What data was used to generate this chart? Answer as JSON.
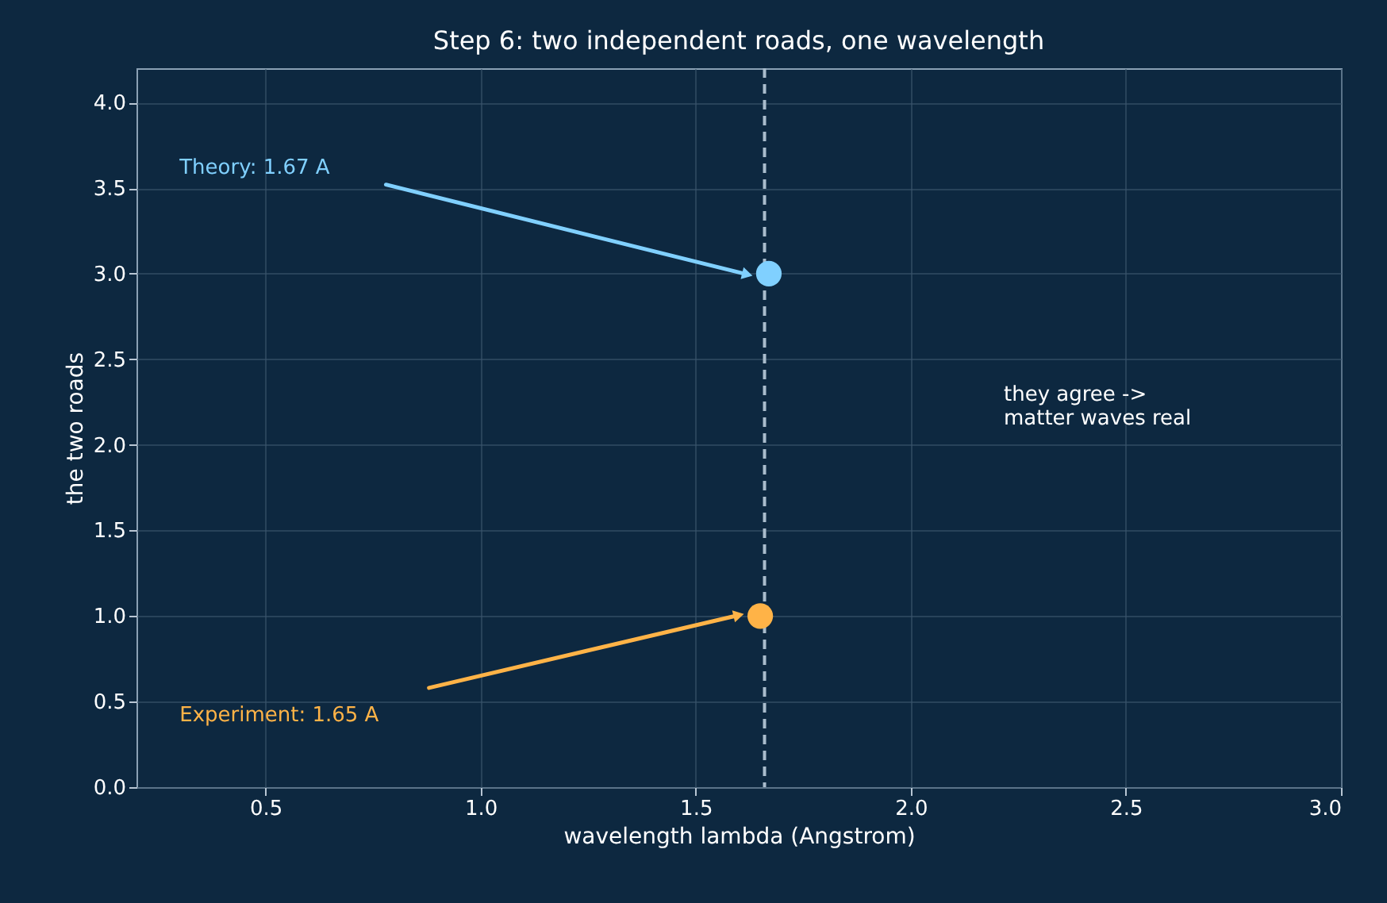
{
  "chart_data": {
    "type": "scatter",
    "title": "Step 6: two independent roads, one wavelength",
    "xlabel": "wavelength lambda (Angstrom)",
    "ylabel": "the two roads",
    "series": [
      {
        "color": "#80d0ff",
        "x": [
          1.67
        ],
        "values": [
          3.0
        ]
      },
      {
        "color": "#ffb347",
        "x": [
          1.65
        ],
        "values": [
          1.0
        ]
      }
    ],
    "annotations": [
      "Theory: 1.67 A",
      "Experiment: 1.65 A",
      "they agree ->\nmatter waves real"
    ],
    "ref_lines": [
      {
        "axis": "x",
        "value": 1.66,
        "color": "#a9bccc",
        "line_style": "dashed"
      }
    ],
    "xlim": [
      0.2,
      3.0
    ],
    "xticks": [
      0.5,
      {
        "value": 1,
        "label": "1.0"
      },
      1.5,
      {
        "value": 2,
        "label": "2.0"
      },
      2.5,
      {
        "value": 3,
        "label": "3.0"
      }
    ],
    "ylim": [
      0,
      4.2
    ],
    "yticks": [
      {
        "value": 0,
        "label": "0.0"
      },
      0.5,
      {
        "value": 1,
        "label": "1.0"
      },
      1.5,
      {
        "value": 2,
        "label": "2.0"
      },
      2.5,
      {
        "value": 3,
        "label": "3.0"
      },
      3.5,
      {
        "value": 4,
        "label": "4.0"
      }
    ],
    "grid": true,
    "marker": "circle"
  }
}
